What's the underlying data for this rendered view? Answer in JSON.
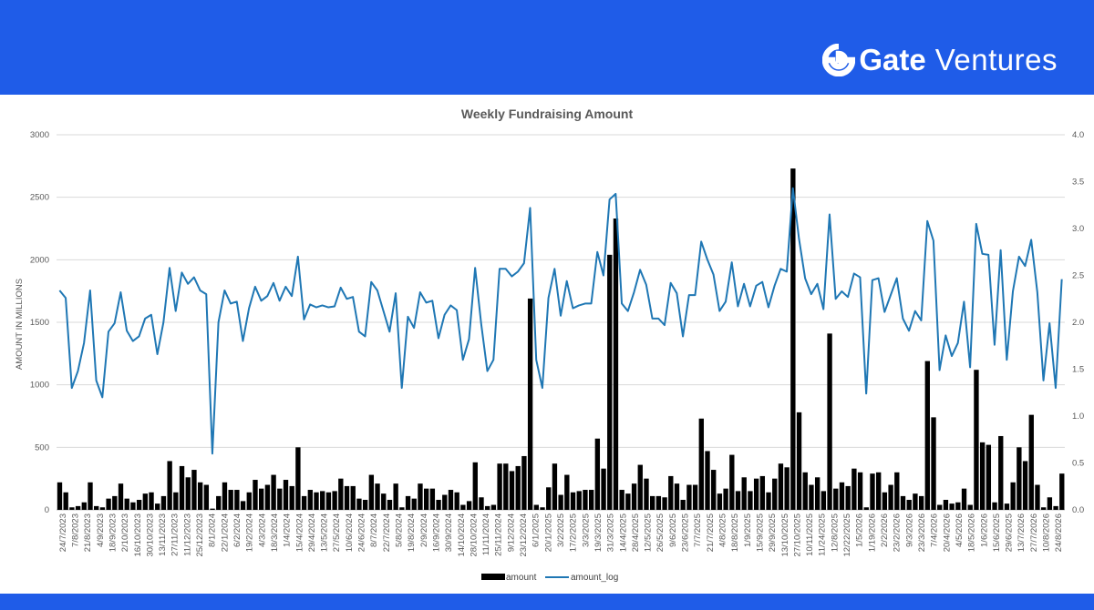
{
  "brand": {
    "mark": "G",
    "name_bold": "Gate",
    "name_thin": "Ventures"
  },
  "colors": {
    "brand_blue": "#1f5ce8",
    "bar": "#000000",
    "line": "#1f77b4",
    "grid": "#d9d9d9"
  },
  "chart_data": {
    "type": "bar",
    "title": "Weekly Fundraising Amount",
    "ylabel": "AMOUNT IN MILLIONS",
    "ylim": [
      0,
      3000
    ],
    "y2lim": [
      0,
      4.0
    ],
    "yticks": [
      "0",
      "500",
      "1000",
      "1500",
      "2000",
      "2500",
      "3000"
    ],
    "y2ticks": [
      "0.0",
      "0.5",
      "1.0",
      "1.5",
      "2.0",
      "2.5",
      "3.0",
      "3.5",
      "4.0"
    ],
    "grid": true,
    "legend_position": "bottom",
    "x_tick_labels": [
      "24/7/2023",
      "7/8/2023",
      "21/8/2023",
      "4/9/2023",
      "18/9/2023",
      "2/10/2023",
      "16/10/2023",
      "30/10/2023",
      "13/11/2023",
      "27/11/2023",
      "11/12/2023",
      "25/12/2023",
      "8/1/2024",
      "22/1/2024",
      "6/2/2024",
      "19/2/2024",
      "4/3/2024",
      "18/3/2024",
      "1/4/2024",
      "15/4/2024",
      "29/4/2024",
      "13/5/2024",
      "27/5/2024",
      "10/6/2024",
      "24/6/2024",
      "8/7/2024",
      "22/7/2024",
      "5/8/2024",
      "19/8/2024",
      "2/9/2024",
      "16/9/2024",
      "30/9/2024",
      "14/10/2024",
      "28/10/2024",
      "11/11/2024",
      "25/11/2024",
      "9/12/2024",
      "23/12/2024",
      "6/1/2025",
      "20/1/2025",
      "3/2/2025",
      "17/2/2025",
      "3/3/2025",
      "19/3/2025",
      "31/3/2025",
      "14/4/2025",
      "28/4/2025",
      "12/5/2025",
      "26/5/2025",
      "9/6/2025",
      "23/6/2025",
      "7/7/2025",
      "21/7/2025",
      "4/8/2025",
      "18/8/2025",
      "1/9/2025",
      "15/9/2025",
      "29/9/2025",
      "13/10/2025",
      "27/10/2025",
      "10/11/2025",
      "11/24/2025",
      "12/8/2025",
      "12/22/2025",
      "1/5/2026",
      "1/19/2026",
      "2/2/2026",
      "23/2/2026",
      "9/3/2026",
      "23/3/2026",
      "7/4/2026",
      "20/4/2026",
      "4/5/2026",
      "18/5/2026",
      "1/6/2026",
      "15/6/2025",
      "29/6/2025",
      "13/7/2026",
      "27/7/2026",
      "10/8/2026",
      "24/8/2026"
    ],
    "series": [
      {
        "name": "amount",
        "kind": "bar",
        "axis": "left",
        "values": [
          220,
          140,
          20,
          30,
          60,
          220,
          30,
          20,
          90,
          110,
          210,
          90,
          60,
          80,
          130,
          140,
          50,
          110,
          390,
          140,
          350,
          260,
          320,
          220,
          200,
          10,
          110,
          220,
          160,
          160,
          70,
          140,
          240,
          170,
          200,
          280,
          170,
          240,
          190,
          500,
          110,
          160,
          140,
          150,
          140,
          150,
          250,
          190,
          190,
          90,
          80,
          280,
          210,
          130,
          80,
          210,
          20,
          110,
          90,
          210,
          170,
          170,
          80,
          120,
          160,
          140,
          40,
          70,
          380,
          100,
          30,
          40,
          370,
          370,
          310,
          350,
          430,
          1690,
          40,
          20,
          180,
          370,
          120,
          280,
          140,
          150,
          160,
          160,
          570,
          330,
          2040,
          2330,
          160,
          130,
          210,
          360,
          250,
          110,
          110,
          100,
          270,
          210,
          80,
          200,
          200,
          730,
          470,
          320,
          130,
          170,
          440,
          150,
          260,
          150,
          250,
          270,
          140,
          250,
          370,
          340,
          2730,
          780,
          300,
          200,
          260,
          150,
          1410,
          170,
          220,
          190,
          330,
          300,
          20,
          290,
          300,
          140,
          200,
          300,
          110,
          80,
          130,
          110,
          1190,
          740,
          40,
          80,
          50,
          60,
          170,
          40,
          1120,
          540,
          520,
          60,
          590,
          50,
          220,
          500,
          390,
          760,
          200,
          20,
          100,
          30,
          290
        ]
      },
      {
        "name": "amount_log",
        "kind": "line",
        "axis": "right",
        "values": [
          2.34,
          2.26,
          1.3,
          1.48,
          1.78,
          2.34,
          1.38,
          1.2,
          1.9,
          1.99,
          2.32,
          1.91,
          1.8,
          1.85,
          2.04,
          2.08,
          1.66,
          2.0,
          2.58,
          2.12,
          2.53,
          2.41,
          2.48,
          2.34,
          2.3,
          0.6,
          2.0,
          2.34,
          2.2,
          2.22,
          1.8,
          2.15,
          2.38,
          2.23,
          2.28,
          2.42,
          2.23,
          2.38,
          2.28,
          2.7,
          2.03,
          2.19,
          2.16,
          2.18,
          2.16,
          2.17,
          2.37,
          2.25,
          2.27,
          1.9,
          1.85,
          2.43,
          2.34,
          2.12,
          1.9,
          2.31,
          1.3,
          2.06,
          1.94,
          2.32,
          2.21,
          2.23,
          1.83,
          2.08,
          2.18,
          2.13,
          1.6,
          1.82,
          2.58,
          1.98,
          1.48,
          1.6,
          2.57,
          2.57,
          2.49,
          2.54,
          2.63,
          3.22,
          1.6,
          1.3,
          2.26,
          2.57,
          2.07,
          2.44,
          2.15,
          2.18,
          2.2,
          2.2,
          2.75,
          2.5,
          3.31,
          3.37,
          2.2,
          2.12,
          2.32,
          2.56,
          2.4,
          2.04,
          2.04,
          1.97,
          2.42,
          2.31,
          1.85,
          2.29,
          2.29,
          2.86,
          2.67,
          2.51,
          2.12,
          2.22,
          2.64,
          2.17,
          2.41,
          2.17,
          2.39,
          2.43,
          2.16,
          2.39,
          2.57,
          2.54,
          3.43,
          2.89,
          2.47,
          2.3,
          2.41,
          2.14,
          3.15,
          2.25,
          2.33,
          2.27,
          2.52,
          2.48,
          1.24,
          2.45,
          2.47,
          2.11,
          2.29,
          2.47,
          2.04,
          1.91,
          2.12,
          2.02,
          3.08,
          2.87,
          1.49,
          1.86,
          1.64,
          1.78,
          2.22,
          1.52,
          3.05,
          2.73,
          2.72,
          1.76,
          2.77,
          1.6,
          2.33,
          2.7,
          2.6,
          2.88,
          2.32,
          1.38,
          1.99,
          1.3,
          2.46
        ]
      }
    ]
  }
}
